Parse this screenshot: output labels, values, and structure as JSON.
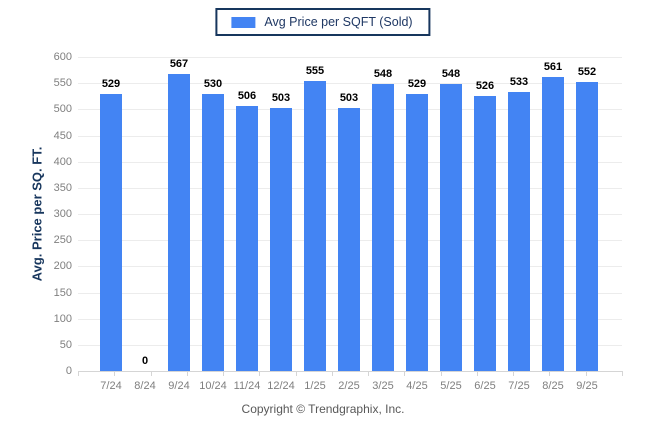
{
  "legend": {
    "label": "Avg Price per SQFT (Sold)",
    "swatch_color": "#4384F3"
  },
  "chart_data": {
    "type": "bar",
    "title": "",
    "categories": [
      "7/24",
      "8/24",
      "9/24",
      "10/24",
      "11/24",
      "12/24",
      "1/25",
      "2/25",
      "3/25",
      "4/25",
      "5/25",
      "6/25",
      "7/25",
      "8/25",
      "9/25"
    ],
    "values": [
      529,
      0,
      567,
      530,
      506,
      503,
      555,
      503,
      548,
      529,
      548,
      526,
      533,
      561,
      552
    ],
    "series_name": "Avg Price per SQFT (Sold)",
    "xlabel": "",
    "ylabel": "Avg. Price per SQ. FT.",
    "ylim": [
      0,
      600
    ],
    "ytick_step": 50,
    "yticks": [
      0,
      50,
      100,
      150,
      200,
      250,
      300,
      350,
      400,
      450,
      500,
      550,
      600
    ],
    "grid": true,
    "value_labels": true,
    "legend_position": "top-center",
    "bar_color": "#4384F3"
  },
  "footer": {
    "copyright": "Copyright © Trendgraphix, Inc."
  }
}
